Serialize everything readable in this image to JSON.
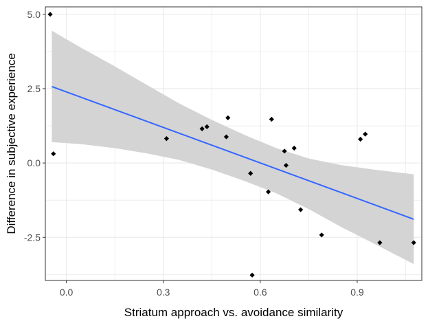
{
  "chart_data": {
    "type": "scatter",
    "xlabel": "Striatum approach vs. avoidance similarity",
    "ylabel": "Difference in subjective experience",
    "xlim": [
      -0.065,
      1.1
    ],
    "ylim": [
      -3.95,
      5.25
    ],
    "x_ticks": [
      0.0,
      0.3,
      0.6,
      0.9
    ],
    "x_tick_labels": [
      "0.0",
      "0.3",
      "0.6",
      "0.9"
    ],
    "y_ticks": [
      -2.5,
      0.0,
      2.5,
      5.0
    ],
    "y_tick_labels": [
      "-2.5",
      "0.0",
      "2.5",
      "5.0"
    ],
    "grid": true,
    "points": [
      {
        "x": -0.05,
        "y": 5.0
      },
      {
        "x": -0.04,
        "y": 0.31
      },
      {
        "x": 0.31,
        "y": 0.82
      },
      {
        "x": 0.42,
        "y": 1.15
      },
      {
        "x": 0.435,
        "y": 1.22
      },
      {
        "x": 0.495,
        "y": 0.88
      },
      {
        "x": 0.5,
        "y": 1.52
      },
      {
        "x": 0.57,
        "y": -0.35
      },
      {
        "x": 0.575,
        "y": -3.77
      },
      {
        "x": 0.625,
        "y": -0.97
      },
      {
        "x": 0.635,
        "y": 1.47
      },
      {
        "x": 0.675,
        "y": 0.4
      },
      {
        "x": 0.68,
        "y": -0.08
      },
      {
        "x": 0.705,
        "y": 0.5
      },
      {
        "x": 0.725,
        "y": -1.57
      },
      {
        "x": 0.79,
        "y": -2.42
      },
      {
        "x": 0.91,
        "y": 0.8
      },
      {
        "x": 0.925,
        "y": 0.97
      },
      {
        "x": 0.97,
        "y": -2.68
      },
      {
        "x": 1.075,
        "y": -2.68
      }
    ],
    "fit": {
      "x_start": -0.045,
      "x_end": 1.075,
      "y_start": 2.57,
      "y_end": -1.89,
      "band_upper": [
        {
          "x": -0.045,
          "y": 4.45
        },
        {
          "x": 0.05,
          "y": 3.85
        },
        {
          "x": 0.15,
          "y": 3.25
        },
        {
          "x": 0.25,
          "y": 2.62
        },
        {
          "x": 0.35,
          "y": 2.0
        },
        {
          "x": 0.45,
          "y": 1.45
        },
        {
          "x": 0.55,
          "y": 0.95
        },
        {
          "x": 0.65,
          "y": 0.5
        },
        {
          "x": 0.75,
          "y": 0.15
        },
        {
          "x": 0.85,
          "y": -0.07
        },
        {
          "x": 0.95,
          "y": -0.22
        },
        {
          "x": 1.075,
          "y": -0.38
        }
      ],
      "band_lower": [
        {
          "x": -0.045,
          "y": 0.7
        },
        {
          "x": 0.05,
          "y": 0.63
        },
        {
          "x": 0.15,
          "y": 0.5
        },
        {
          "x": 0.25,
          "y": 0.32
        },
        {
          "x": 0.35,
          "y": 0.1
        },
        {
          "x": 0.45,
          "y": -0.22
        },
        {
          "x": 0.55,
          "y": -0.6
        },
        {
          "x": 0.65,
          "y": -1.02
        },
        {
          "x": 0.75,
          "y": -1.55
        },
        {
          "x": 0.85,
          "y": -2.15
        },
        {
          "x": 0.95,
          "y": -2.7
        },
        {
          "x": 1.075,
          "y": -3.4
        }
      ]
    },
    "colors": {
      "points": "#000000",
      "fit_line": "#3366ff",
      "band": "#d4d4d4",
      "grid": "#ebebeb",
      "panel_border": "#333333",
      "tick": "#333333"
    }
  }
}
